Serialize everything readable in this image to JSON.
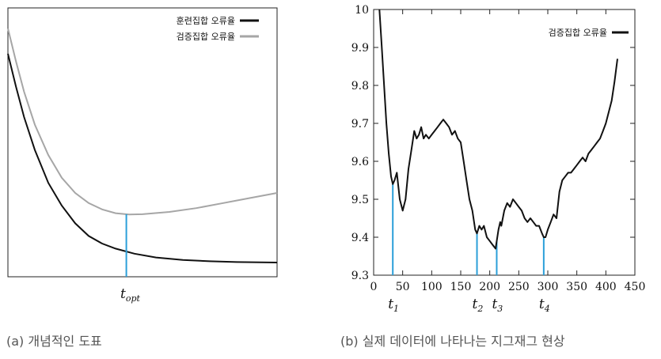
{
  "colors": {
    "train": "#111111",
    "validation": "#a6a6a6",
    "marker": "#2b9fd9",
    "frame": "#222222"
  },
  "captions": {
    "a": "(a) 개념적인 도표",
    "b": "(b) 실제 데이터에 나타나는 지그재그 현상"
  },
  "chart_data": [
    {
      "type": "line",
      "title": "",
      "xlabel": "",
      "ylabel": "",
      "legend_position": "top-right",
      "series": [
        {
          "name": "훈련집합 오류율",
          "color": "#111111",
          "x": [
            0,
            0.03,
            0.06,
            0.1,
            0.15,
            0.2,
            0.25,
            0.3,
            0.35,
            0.4,
            0.47,
            0.55,
            0.65,
            0.75,
            0.85,
            1.0
          ],
          "y": [
            0.85,
            0.72,
            0.6,
            0.47,
            0.34,
            0.25,
            0.18,
            0.13,
            0.1,
            0.08,
            0.06,
            0.045,
            0.035,
            0.03,
            0.027,
            0.025
          ]
        },
        {
          "name": "검증집합 오류율",
          "color": "#a6a6a6",
          "x": [
            0,
            0.03,
            0.06,
            0.1,
            0.15,
            0.2,
            0.25,
            0.3,
            0.35,
            0.4,
            0.45,
            0.5,
            0.6,
            0.7,
            0.8,
            0.9,
            1.0
          ],
          "y": [
            0.95,
            0.82,
            0.7,
            0.57,
            0.45,
            0.36,
            0.3,
            0.26,
            0.235,
            0.22,
            0.215,
            0.216,
            0.225,
            0.24,
            0.26,
            0.28,
            0.3
          ]
        }
      ],
      "markers": [
        {
          "x": 0.44,
          "label": "t",
          "subscript": "opt"
        }
      ],
      "xlim": [
        0,
        1
      ],
      "ylim": [
        0,
        1
      ],
      "grid": false
    },
    {
      "type": "line",
      "title": "",
      "xlabel": "",
      "ylabel": "",
      "legend_position": "top-right",
      "xlim": [
        0,
        450
      ],
      "ylim": [
        9.3,
        10.0
      ],
      "xticks": [
        "0",
        "50",
        "100",
        "150",
        "200",
        "250",
        "300",
        "350",
        "400",
        "450"
      ],
      "yticks": [
        "9.3",
        "9.4",
        "9.5",
        "9.6",
        "9.7",
        "9.8",
        "9.9",
        "10"
      ],
      "grid": false,
      "series": [
        {
          "name": "검증집합 오류율",
          "color": "#111111",
          "x": [
            10,
            14,
            18,
            22,
            26,
            30,
            33,
            36,
            40,
            45,
            50,
            55,
            60,
            65,
            70,
            74,
            78,
            82,
            86,
            90,
            95,
            100,
            105,
            110,
            115,
            120,
            125,
            130,
            135,
            140,
            145,
            150,
            155,
            160,
            165,
            170,
            175,
            178,
            182,
            186,
            190,
            195,
            200,
            205,
            210,
            212,
            215,
            218,
            220,
            225,
            230,
            235,
            240,
            245,
            250,
            255,
            260,
            265,
            270,
            275,
            280,
            285,
            290,
            293,
            296,
            300,
            305,
            310,
            315,
            320,
            325,
            330,
            335,
            340,
            345,
            350,
            355,
            360,
            365,
            370,
            375,
            380,
            385,
            390,
            395,
            400,
            405,
            410,
            415,
            420
          ],
          "y": [
            10.0,
            9.9,
            9.8,
            9.7,
            9.62,
            9.56,
            9.54,
            9.55,
            9.57,
            9.5,
            9.47,
            9.5,
            9.58,
            9.63,
            9.68,
            9.66,
            9.67,
            9.69,
            9.66,
            9.67,
            9.66,
            9.67,
            9.68,
            9.69,
            9.7,
            9.71,
            9.7,
            9.69,
            9.67,
            9.68,
            9.66,
            9.65,
            9.6,
            9.55,
            9.5,
            9.47,
            9.42,
            9.41,
            9.43,
            9.42,
            9.43,
            9.4,
            9.39,
            9.38,
            9.37,
            9.39,
            9.42,
            9.44,
            9.43,
            9.47,
            9.49,
            9.48,
            9.5,
            9.49,
            9.48,
            9.47,
            9.45,
            9.44,
            9.45,
            9.44,
            9.43,
            9.43,
            9.41,
            9.4,
            9.4,
            9.42,
            9.44,
            9.46,
            9.45,
            9.52,
            9.55,
            9.56,
            9.57,
            9.57,
            9.58,
            9.59,
            9.6,
            9.61,
            9.6,
            9.62,
            9.63,
            9.64,
            9.65,
            9.66,
            9.68,
            9.7,
            9.73,
            9.76,
            9.81,
            9.87
          ]
        }
      ],
      "markers": [
        {
          "x": 33,
          "label": "t",
          "subscript": "1"
        },
        {
          "x": 178,
          "label": "t",
          "subscript": "2"
        },
        {
          "x": 212,
          "label": "t",
          "subscript": "3"
        },
        {
          "x": 293,
          "label": "t",
          "subscript": "4"
        }
      ]
    }
  ]
}
